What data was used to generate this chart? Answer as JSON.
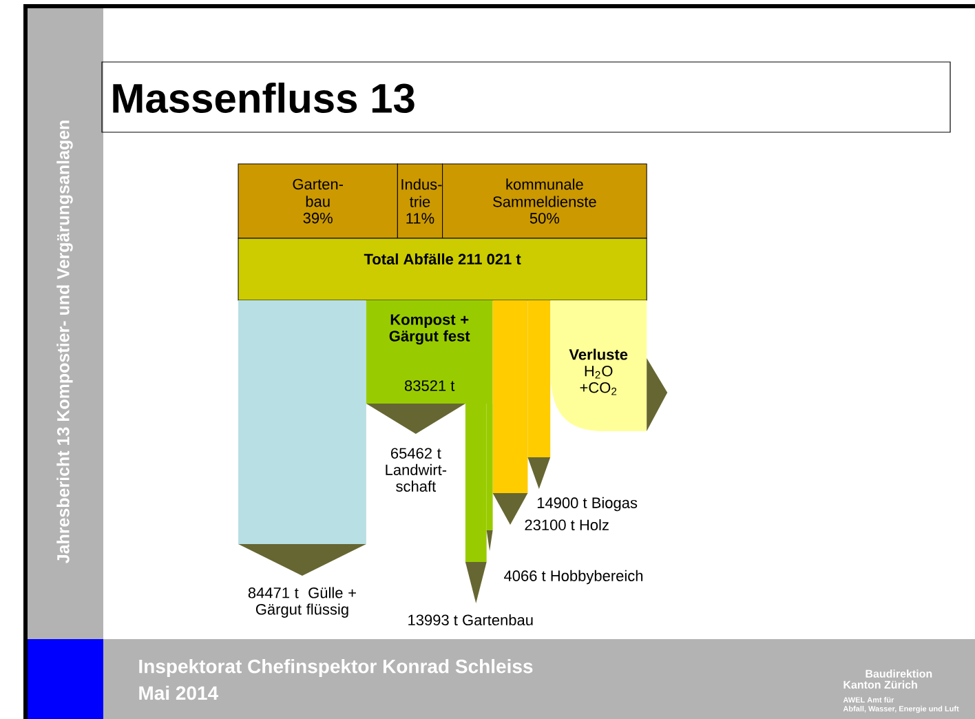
{
  "chart_data": [
    {
      "type": "other",
      "title": "Massenfluss 13",
      "categories": [
        "Garten-bau",
        "Indus-trie",
        "kommunale Sammeldienste"
      ],
      "values": [
        39,
        11,
        50
      ],
      "value_labels": [
        "39%",
        "11%",
        "50%"
      ],
      "colors": [
        "#cc9900",
        "#cc9900",
        "#cc9900"
      ],
      "annotations": [
        "Total Abfälle 211 021 t",
        "Jahresbericht 13 Kompostier- und Vergärungsanlagen",
        "Inspektorat Chefinspektor Konrad Schleiss",
        "Mai 2014",
        "Baudirektion",
        "Kanton Zürich",
        "AWEL  Amt für",
        "Abfall, Wasser, Energie und Luft"
      ]
    },
    {
      "type": "other",
      "categories": [
        "Gülle + Gärgut flüssig",
        "Kompost + Gärgut fest",
        "Holz",
        "Biogas",
        "**Verluste** H$_{2}$O +CO$_{2}$",
        "Landwirt-schaft",
        "Gartenbau",
        "Hobbybereich"
      ],
      "values": [
        84471,
        83521,
        23100,
        14900,
        null,
        65462,
        13993,
        4066
      ],
      "value_labels": [
        "84471 t ",
        "83521 t",
        "23100 t",
        "14900 t",
        null,
        "65462 t",
        "13993 t",
        "4066 t"
      ],
      "colors": [
        "#b8dfe3",
        "#99cc00",
        "#ffcc00",
        "#ffcc00",
        "#ffff99",
        "#666633",
        "#99cc00",
        "#99cc00"
      ]
    }
  ]
}
